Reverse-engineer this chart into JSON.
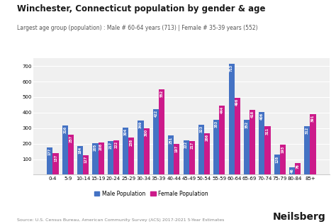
{
  "title": "Winchester, Connecticut population by gender & age",
  "subtitle": "Largest age group (population) : Male # 60-64 years (713) | Female # 35-39 years (552)",
  "categories": [
    "0-4",
    "5-9",
    "10-14",
    "15-19",
    "20-24",
    "25-29",
    "30-34",
    "35-39",
    "40-44",
    "45-49",
    "50-54",
    "55-59",
    "60-64",
    "65-69",
    "70-74",
    "75-79",
    "80-84",
    "85+"
  ],
  "male": [
    177,
    316,
    184,
    205,
    217,
    304,
    349,
    422,
    251,
    222,
    323,
    353,
    713,
    352,
    406,
    128,
    46,
    312
  ],
  "female": [
    137,
    257,
    127,
    208,
    222,
    238,
    300,
    552,
    197,
    217,
    266,
    444,
    496,
    418,
    311,
    193,
    76,
    391
  ],
  "male_color": "#4472C4",
  "female_color": "#CC1A8A",
  "bar_value_color": "#ffffff",
  "ylim": [
    0,
    750
  ],
  "yticks": [
    0,
    100,
    200,
    300,
    400,
    500,
    600,
    700
  ],
  "legend_male": "Male Population",
  "legend_female": "Female Population",
  "source": "Source: U.S. Census Bureau, American Community Survey (ACS) 2017-2021 5-Year Estimates",
  "brand": "Neilsberg",
  "bg_color": "#ffffff",
  "plot_bg_color": "#f0f0f0",
  "title_fontsize": 8.5,
  "subtitle_fontsize": 5.5,
  "tick_fontsize": 5.0,
  "bar_label_fontsize": 3.5,
  "legend_fontsize": 5.5,
  "source_fontsize": 4.5,
  "brand_fontsize": 10
}
